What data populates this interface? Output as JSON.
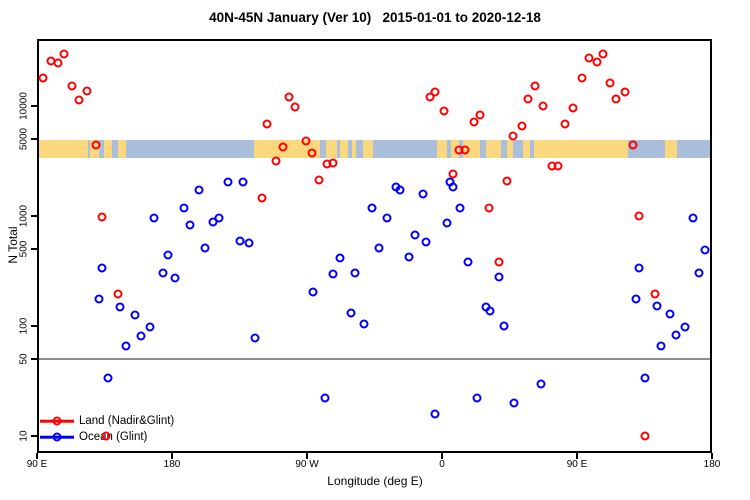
{
  "title": "40N-45N January (Ver 10)   2015-01-01 to 2020-12-18",
  "chart_data": {
    "type": "scatter",
    "title": "40N-45N January (Ver 10)   2015-01-01 to 2020-12-18",
    "xlabel": "Longitude (deg E)",
    "ylabel": "N Total",
    "x_scale": "linear",
    "y_scale": "log",
    "xlim": [
      90,
      540
    ],
    "ylim": [
      8,
      40000
    ],
    "grid": false,
    "x_ticks": [
      {
        "value": 90,
        "label": "90 E"
      },
      {
        "value": 180,
        "label": "180"
      },
      {
        "value": 270,
        "label": "90 W"
      },
      {
        "value": 360,
        "label": "0"
      },
      {
        "value": 450,
        "label": "90 E"
      },
      {
        "value": 540,
        "label": "180"
      }
    ],
    "y_ticks": [
      {
        "value": 10,
        "label": "10"
      },
      {
        "value": 50,
        "label": "50"
      },
      {
        "value": 100,
        "label": "100"
      },
      {
        "value": 500,
        "label": "500"
      },
      {
        "value": 1000,
        "label": "1000"
      },
      {
        "value": 5000,
        "label": "5000"
      },
      {
        "value": 10000,
        "label": "10000"
      }
    ],
    "reference_line": {
      "y": 50,
      "color": "#8c8c8c"
    },
    "map_band": {
      "description": "land/ocean strip of the 40N-45N latitude belt drawn across the plot",
      "value_range": [
        3400,
        4900
      ],
      "land_color": "#fbd87e",
      "ocean_color": "#a9bedb",
      "land_segments_deg": [
        [
          90,
          124
        ],
        [
          125.3,
          131.3
        ],
        [
          134.7,
          140
        ],
        [
          144,
          149.3
        ],
        [
          234.7,
          290
        ],
        [
          292,
          297.3
        ],
        [
          300,
          302.7
        ],
        [
          307.3,
          314
        ],
        [
          356.7,
          363.3
        ],
        [
          366,
          371.3
        ],
        [
          374,
          484
        ],
        [
          508.7,
          516.7
        ]
      ],
      "ocean_specks_deg": [
        [
          278.7,
          282.7
        ],
        [
          385.3,
          389.3
        ],
        [
          399.3,
          403.3
        ],
        [
          407.3,
          414
        ],
        [
          418.7,
          421.3
        ]
      ]
    },
    "legend": {
      "position": "bottom-left",
      "entries": [
        {
          "label": "Land (Nadir&Glint)",
          "color": "#ff0000"
        },
        {
          "label": "Ocean (Glint)",
          "color": "#0000ff"
        }
      ]
    },
    "series": [
      {
        "name": "Land (Nadir&Glint)",
        "color": "#ff0000",
        "marker": "open-circle",
        "points": [
          [
            99,
            25600
          ],
          [
            104,
            24500
          ],
          [
            108,
            29500
          ],
          [
            94,
            18000
          ],
          [
            113,
            15100
          ],
          [
            123,
            13700
          ],
          [
            118,
            11400
          ],
          [
            129,
            4400
          ],
          [
            133,
            980
          ],
          [
            258,
            12100
          ],
          [
            262,
            9800
          ],
          [
            243,
            6900
          ],
          [
            269,
            4800
          ],
          [
            254,
            4240
          ],
          [
            273,
            3740
          ],
          [
            249,
            3160
          ],
          [
            283,
            2970
          ],
          [
            287,
            3030
          ],
          [
            278,
            2120
          ],
          [
            240,
            1460
          ],
          [
            352,
            12100
          ],
          [
            355,
            13400
          ],
          [
            361,
            9000
          ],
          [
            381,
            7160
          ],
          [
            385,
            8280
          ],
          [
            371,
            3980
          ],
          [
            375,
            3980
          ],
          [
            367,
            2400
          ],
          [
            458,
            27300
          ],
          [
            463,
            25100
          ],
          [
            467,
            29500
          ],
          [
            453,
            18000
          ],
          [
            422,
            15100
          ],
          [
            472,
            16200
          ],
          [
            482,
            13400
          ],
          [
            476,
            11600
          ],
          [
            417,
            11600
          ],
          [
            427,
            10000
          ],
          [
            447,
            9550
          ],
          [
            442,
            6900
          ],
          [
            413,
            6580
          ],
          [
            407,
            5330
          ],
          [
            487,
            4400
          ],
          [
            433,
            2850
          ],
          [
            437,
            2850
          ],
          [
            403,
            2080
          ],
          [
            391,
            1180
          ],
          [
            491,
            1000
          ],
          [
            144,
            195
          ],
          [
            136,
            10
          ],
          [
            398,
            382
          ],
          [
            502,
            195
          ],
          [
            495,
            10
          ]
        ]
      },
      {
        "name": "Ocean (Glint)",
        "color": "#0000ff",
        "marker": "open-circle",
        "points": [
          [
            168,
            955
          ],
          [
            188,
            1180
          ],
          [
            198,
            1720
          ],
          [
            217,
            2040
          ],
          [
            227,
            2040
          ],
          [
            192,
            830
          ],
          [
            207,
            880
          ],
          [
            211,
            955
          ],
          [
            225,
            595
          ],
          [
            231,
            570
          ],
          [
            202,
            513
          ],
          [
            177,
            442
          ],
          [
            174,
            302
          ],
          [
            182,
            273
          ],
          [
            133,
            336
          ],
          [
            131,
            176
          ],
          [
            145,
            148
          ],
          [
            155,
            126
          ],
          [
            165,
            98
          ],
          [
            159,
            81
          ],
          [
            149,
            66
          ],
          [
            137,
            34
          ],
          [
            235,
            78
          ],
          [
            329,
            1840
          ],
          [
            332,
            1720
          ],
          [
            347,
            1580
          ],
          [
            365,
            2040
          ],
          [
            367,
            1820
          ],
          [
            313,
            1180
          ],
          [
            323,
            955
          ],
          [
            372,
            1180
          ],
          [
            363,
            863
          ],
          [
            342,
            671
          ],
          [
            349,
            581
          ],
          [
            318,
            513
          ],
          [
            292,
            415
          ],
          [
            338,
            424
          ],
          [
            377,
            382
          ],
          [
            287,
            295
          ],
          [
            302,
            302
          ],
          [
            274,
            204
          ],
          [
            299,
            131
          ],
          [
            308,
            104
          ],
          [
            389,
            148
          ],
          [
            282,
            22
          ],
          [
            355,
            16
          ],
          [
            383,
            22
          ],
          [
            527,
            955
          ],
          [
            535,
            490
          ],
          [
            398,
            279
          ],
          [
            392,
            137
          ],
          [
            401,
            100
          ],
          [
            426,
            30
          ],
          [
            408,
            20
          ],
          [
            491,
            336
          ],
          [
            489,
            176
          ],
          [
            503,
            151
          ],
          [
            512,
            129
          ],
          [
            522,
            98
          ],
          [
            516,
            83
          ],
          [
            506,
            66
          ],
          [
            495,
            34
          ],
          [
            531,
            302
          ]
        ]
      }
    ]
  }
}
